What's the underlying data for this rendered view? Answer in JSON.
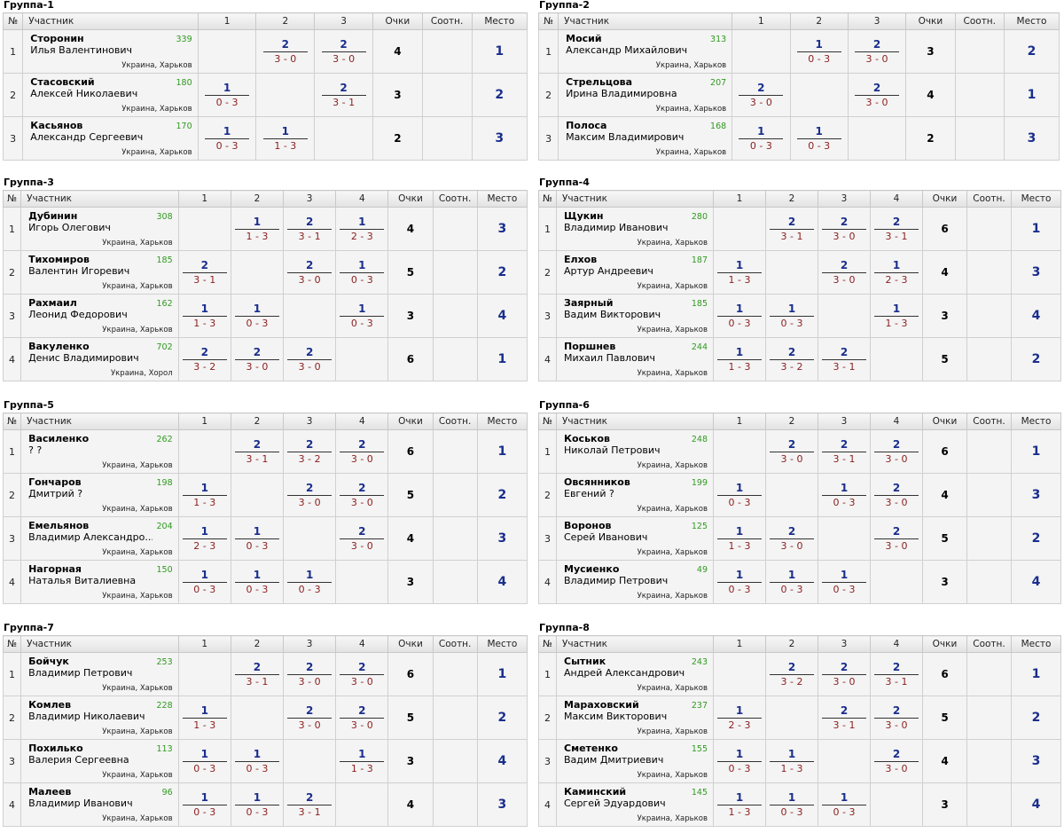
{
  "headers": {
    "num": "№",
    "participant": "Участник",
    "points": "Очки",
    "ratio": "Соотн.",
    "place": "Место"
  },
  "groups": [
    {
      "title": "Группа-1",
      "cols": [
        "1",
        "2",
        "3"
      ],
      "players": [
        {
          "num": "1",
          "surname": "Сторонин",
          "fullname": "Илья Валентинович",
          "rating": "339",
          "location": "Украина, Харьков",
          "results": [
            null,
            {
              "w": "2",
              "s": "3 - 0"
            },
            {
              "w": "2",
              "s": "3 - 0"
            }
          ],
          "points": "4",
          "place": "1"
        },
        {
          "num": "2",
          "surname": "Стасовский",
          "fullname": "Алексей Николаевич",
          "rating": "180",
          "location": "Украина, Харьков",
          "results": [
            {
              "w": "1",
              "s": "0 - 3"
            },
            null,
            {
              "w": "2",
              "s": "3 - 1"
            }
          ],
          "points": "3",
          "place": "2"
        },
        {
          "num": "3",
          "surname": "Касьянов",
          "fullname": "Александр Сергеевич",
          "rating": "170",
          "location": "Украина, Харьков",
          "results": [
            {
              "w": "1",
              "s": "0 - 3"
            },
            {
              "w": "1",
              "s": "1 - 3"
            },
            null
          ],
          "points": "2",
          "place": "3"
        }
      ]
    },
    {
      "title": "Группа-2",
      "cols": [
        "1",
        "2",
        "3"
      ],
      "players": [
        {
          "num": "1",
          "surname": "Мосий",
          "fullname": "Александр Михайлович",
          "rating": "313",
          "location": "Украина, Харьков",
          "results": [
            null,
            {
              "w": "1",
              "s": "0 - 3"
            },
            {
              "w": "2",
              "s": "3 - 0"
            }
          ],
          "points": "3",
          "place": "2"
        },
        {
          "num": "2",
          "surname": "Стрельцова",
          "fullname": "Ирина Владимировна",
          "rating": "207",
          "location": "Украина, Харьков",
          "results": [
            {
              "w": "2",
              "s": "3 - 0"
            },
            null,
            {
              "w": "2",
              "s": "3 - 0"
            }
          ],
          "points": "4",
          "place": "1"
        },
        {
          "num": "3",
          "surname": "Полоса",
          "fullname": "Максим Владимирович",
          "rating": "168",
          "location": "Украина, Харьков",
          "results": [
            {
              "w": "1",
              "s": "0 - 3"
            },
            {
              "w": "1",
              "s": "0 - 3"
            },
            null
          ],
          "points": "2",
          "place": "3"
        }
      ]
    },
    {
      "title": "Группа-3",
      "cols": [
        "1",
        "2",
        "3",
        "4"
      ],
      "players": [
        {
          "num": "1",
          "surname": "Дубинин",
          "fullname": "Игорь Олегович",
          "rating": "308",
          "location": "Украина, Харьков",
          "results": [
            null,
            {
              "w": "1",
              "s": "1 - 3"
            },
            {
              "w": "2",
              "s": "3 - 1"
            },
            {
              "w": "1",
              "s": "2 - 3"
            }
          ],
          "points": "4",
          "place": "3"
        },
        {
          "num": "2",
          "surname": "Тихомиров",
          "fullname": "Валентин Игоревич",
          "rating": "185",
          "location": "Украина, Харьков",
          "results": [
            {
              "w": "2",
              "s": "3 - 1"
            },
            null,
            {
              "w": "2",
              "s": "3 - 0"
            },
            {
              "w": "1",
              "s": "0 - 3"
            }
          ],
          "points": "5",
          "place": "2"
        },
        {
          "num": "3",
          "surname": "Рахмаил",
          "fullname": "Леонид Федорович",
          "rating": "162",
          "location": "Украина, Харьков",
          "results": [
            {
              "w": "1",
              "s": "1 - 3"
            },
            {
              "w": "1",
              "s": "0 - 3"
            },
            null,
            {
              "w": "1",
              "s": "0 - 3"
            }
          ],
          "points": "3",
          "place": "4"
        },
        {
          "num": "4",
          "surname": "Вакуленко",
          "fullname": "Денис Владимирович",
          "rating": "702",
          "location": "Украина, Хорол",
          "results": [
            {
              "w": "2",
              "s": "3 - 2"
            },
            {
              "w": "2",
              "s": "3 - 0"
            },
            {
              "w": "2",
              "s": "3 - 0"
            },
            null
          ],
          "points": "6",
          "place": "1"
        }
      ]
    },
    {
      "title": "Группа-4",
      "cols": [
        "1",
        "2",
        "3",
        "4"
      ],
      "players": [
        {
          "num": "1",
          "surname": "Щукин",
          "fullname": "Владимир Иванович",
          "rating": "280",
          "location": "Украина, Харьков",
          "results": [
            null,
            {
              "w": "2",
              "s": "3 - 1"
            },
            {
              "w": "2",
              "s": "3 - 0"
            },
            {
              "w": "2",
              "s": "3 - 1"
            }
          ],
          "points": "6",
          "place": "1"
        },
        {
          "num": "2",
          "surname": "Елхов",
          "fullname": "Артур Андреевич",
          "rating": "187",
          "location": "Украина, Харьков",
          "results": [
            {
              "w": "1",
              "s": "1 - 3"
            },
            null,
            {
              "w": "2",
              "s": "3 - 0"
            },
            {
              "w": "1",
              "s": "2 - 3"
            }
          ],
          "points": "4",
          "place": "3"
        },
        {
          "num": "3",
          "surname": "Заярный",
          "fullname": "Вадим Викторович",
          "rating": "185",
          "location": "Украина, Харьков",
          "results": [
            {
              "w": "1",
              "s": "0 - 3"
            },
            {
              "w": "1",
              "s": "0 - 3"
            },
            null,
            {
              "w": "1",
              "s": "1 - 3"
            }
          ],
          "points": "3",
          "place": "4"
        },
        {
          "num": "4",
          "surname": "Поршнев",
          "fullname": "Михаил Павлович",
          "rating": "244",
          "location": "Украина, Харьков",
          "results": [
            {
              "w": "1",
              "s": "1 - 3"
            },
            {
              "w": "2",
              "s": "3 - 2"
            },
            {
              "w": "2",
              "s": "3 - 1"
            },
            null
          ],
          "points": "5",
          "place": "2"
        }
      ]
    },
    {
      "title": "Группа-5",
      "cols": [
        "1",
        "2",
        "3",
        "4"
      ],
      "players": [
        {
          "num": "1",
          "surname": "Василенко",
          "fullname": "? ?",
          "rating": "262",
          "location": "Украина, Харьков",
          "results": [
            null,
            {
              "w": "2",
              "s": "3 - 1"
            },
            {
              "w": "2",
              "s": "3 - 2"
            },
            {
              "w": "2",
              "s": "3 - 0"
            }
          ],
          "points": "6",
          "place": "1"
        },
        {
          "num": "2",
          "surname": "Гончаров",
          "fullname": "Дмитрий ?",
          "rating": "198",
          "location": "Украина, Харьков",
          "results": [
            {
              "w": "1",
              "s": "1 - 3"
            },
            null,
            {
              "w": "2",
              "s": "3 - 0"
            },
            {
              "w": "2",
              "s": "3 - 0"
            }
          ],
          "points": "5",
          "place": "2"
        },
        {
          "num": "3",
          "surname": "Емельянов",
          "fullname": "Владимир Александро...",
          "rating": "204",
          "location": "Украина, Харьков",
          "results": [
            {
              "w": "1",
              "s": "2 - 3"
            },
            {
              "w": "1",
              "s": "0 - 3"
            },
            null,
            {
              "w": "2",
              "s": "3 - 0"
            }
          ],
          "points": "4",
          "place": "3"
        },
        {
          "num": "4",
          "surname": "Нагорная",
          "fullname": "Наталья Виталиевна",
          "rating": "150",
          "location": "Украина, Харьков",
          "results": [
            {
              "w": "1",
              "s": "0 - 3"
            },
            {
              "w": "1",
              "s": "0 - 3"
            },
            {
              "w": "1",
              "s": "0 - 3"
            },
            null
          ],
          "points": "3",
          "place": "4"
        }
      ]
    },
    {
      "title": "Группа-6",
      "cols": [
        "1",
        "2",
        "3",
        "4"
      ],
      "players": [
        {
          "num": "1",
          "surname": "Коськов",
          "fullname": "Николай Петрович",
          "rating": "248",
          "location": "Украина, Харьков",
          "results": [
            null,
            {
              "w": "2",
              "s": "3 - 0"
            },
            {
              "w": "2",
              "s": "3 - 1"
            },
            {
              "w": "2",
              "s": "3 - 0"
            }
          ],
          "points": "6",
          "place": "1"
        },
        {
          "num": "2",
          "surname": "Овсянников",
          "fullname": "Евгений ?",
          "rating": "199",
          "location": "Украина, Харьков",
          "results": [
            {
              "w": "1",
              "s": "0 - 3"
            },
            null,
            {
              "w": "1",
              "s": "0 - 3"
            },
            {
              "w": "2",
              "s": "3 - 0"
            }
          ],
          "points": "4",
          "place": "3"
        },
        {
          "num": "3",
          "surname": "Воронов",
          "fullname": "Серей Иванович",
          "rating": "125",
          "location": "Украина, Харьков",
          "results": [
            {
              "w": "1",
              "s": "1 - 3"
            },
            {
              "w": "2",
              "s": "3 - 0"
            },
            null,
            {
              "w": "2",
              "s": "3 - 0"
            }
          ],
          "points": "5",
          "place": "2"
        },
        {
          "num": "4",
          "surname": "Мусиенко",
          "fullname": "Владимир Петрович",
          "rating": "49",
          "location": "Украина, Харьков",
          "results": [
            {
              "w": "1",
              "s": "0 - 3"
            },
            {
              "w": "1",
              "s": "0 - 3"
            },
            {
              "w": "1",
              "s": "0 - 3"
            },
            null
          ],
          "points": "3",
          "place": "4"
        }
      ]
    },
    {
      "title": "Группа-7",
      "cols": [
        "1",
        "2",
        "3",
        "4"
      ],
      "players": [
        {
          "num": "1",
          "surname": "Бойчук",
          "fullname": "Владимир Петрович",
          "rating": "253",
          "location": "Украина, Харьков",
          "results": [
            null,
            {
              "w": "2",
              "s": "3 - 1"
            },
            {
              "w": "2",
              "s": "3 - 0"
            },
            {
              "w": "2",
              "s": "3 - 0"
            }
          ],
          "points": "6",
          "place": "1"
        },
        {
          "num": "2",
          "surname": "Комлев",
          "fullname": "Владимир Николаевич",
          "rating": "228",
          "location": "Украина, Харьков",
          "results": [
            {
              "w": "1",
              "s": "1 - 3"
            },
            null,
            {
              "w": "2",
              "s": "3 - 0"
            },
            {
              "w": "2",
              "s": "3 - 0"
            }
          ],
          "points": "5",
          "place": "2"
        },
        {
          "num": "3",
          "surname": "Похилько",
          "fullname": "Валерия Сергеевна",
          "rating": "113",
          "location": "Украина, Харьков",
          "results": [
            {
              "w": "1",
              "s": "0 - 3"
            },
            {
              "w": "1",
              "s": "0 - 3"
            },
            null,
            {
              "w": "1",
              "s": "1 - 3"
            }
          ],
          "points": "3",
          "place": "4"
        },
        {
          "num": "4",
          "surname": "Малеев",
          "fullname": "Владимир Иванович",
          "rating": "96",
          "location": "Украина, Харьков",
          "results": [
            {
              "w": "1",
              "s": "0 - 3"
            },
            {
              "w": "1",
              "s": "0 - 3"
            },
            {
              "w": "2",
              "s": "3 - 1"
            },
            null
          ],
          "points": "4",
          "place": "3"
        }
      ]
    },
    {
      "title": "Группа-8",
      "cols": [
        "1",
        "2",
        "3",
        "4"
      ],
      "players": [
        {
          "num": "1",
          "surname": "Сытник",
          "fullname": "Андрей Александрович",
          "rating": "243",
          "location": "Украина, Харьков",
          "results": [
            null,
            {
              "w": "2",
              "s": "3 - 2"
            },
            {
              "w": "2",
              "s": "3 - 0"
            },
            {
              "w": "2",
              "s": "3 - 1"
            }
          ],
          "points": "6",
          "place": "1"
        },
        {
          "num": "2",
          "surname": "Мараховский",
          "fullname": "Максим Викторович",
          "rating": "237",
          "location": "Украина, Харьков",
          "results": [
            {
              "w": "1",
              "s": "2 - 3"
            },
            null,
            {
              "w": "2",
              "s": "3 - 1"
            },
            {
              "w": "2",
              "s": "3 - 0"
            }
          ],
          "points": "5",
          "place": "2"
        },
        {
          "num": "3",
          "surname": "Сметенко",
          "fullname": "Вадим Дмитриевич",
          "rating": "155",
          "location": "Украина, Харьков",
          "results": [
            {
              "w": "1",
              "s": "0 - 3"
            },
            {
              "w": "1",
              "s": "1 - 3"
            },
            null,
            {
              "w": "2",
              "s": "3 - 0"
            }
          ],
          "points": "4",
          "place": "3"
        },
        {
          "num": "4",
          "surname": "Каминский",
          "fullname": "Сергей Эдуардович",
          "rating": "145",
          "location": "Украина, Харьков",
          "results": [
            {
              "w": "1",
              "s": "1 - 3"
            },
            {
              "w": "1",
              "s": "0 - 3"
            },
            {
              "w": "1",
              "s": "0 - 3"
            },
            null
          ],
          "points": "3",
          "place": "4"
        }
      ]
    }
  ]
}
